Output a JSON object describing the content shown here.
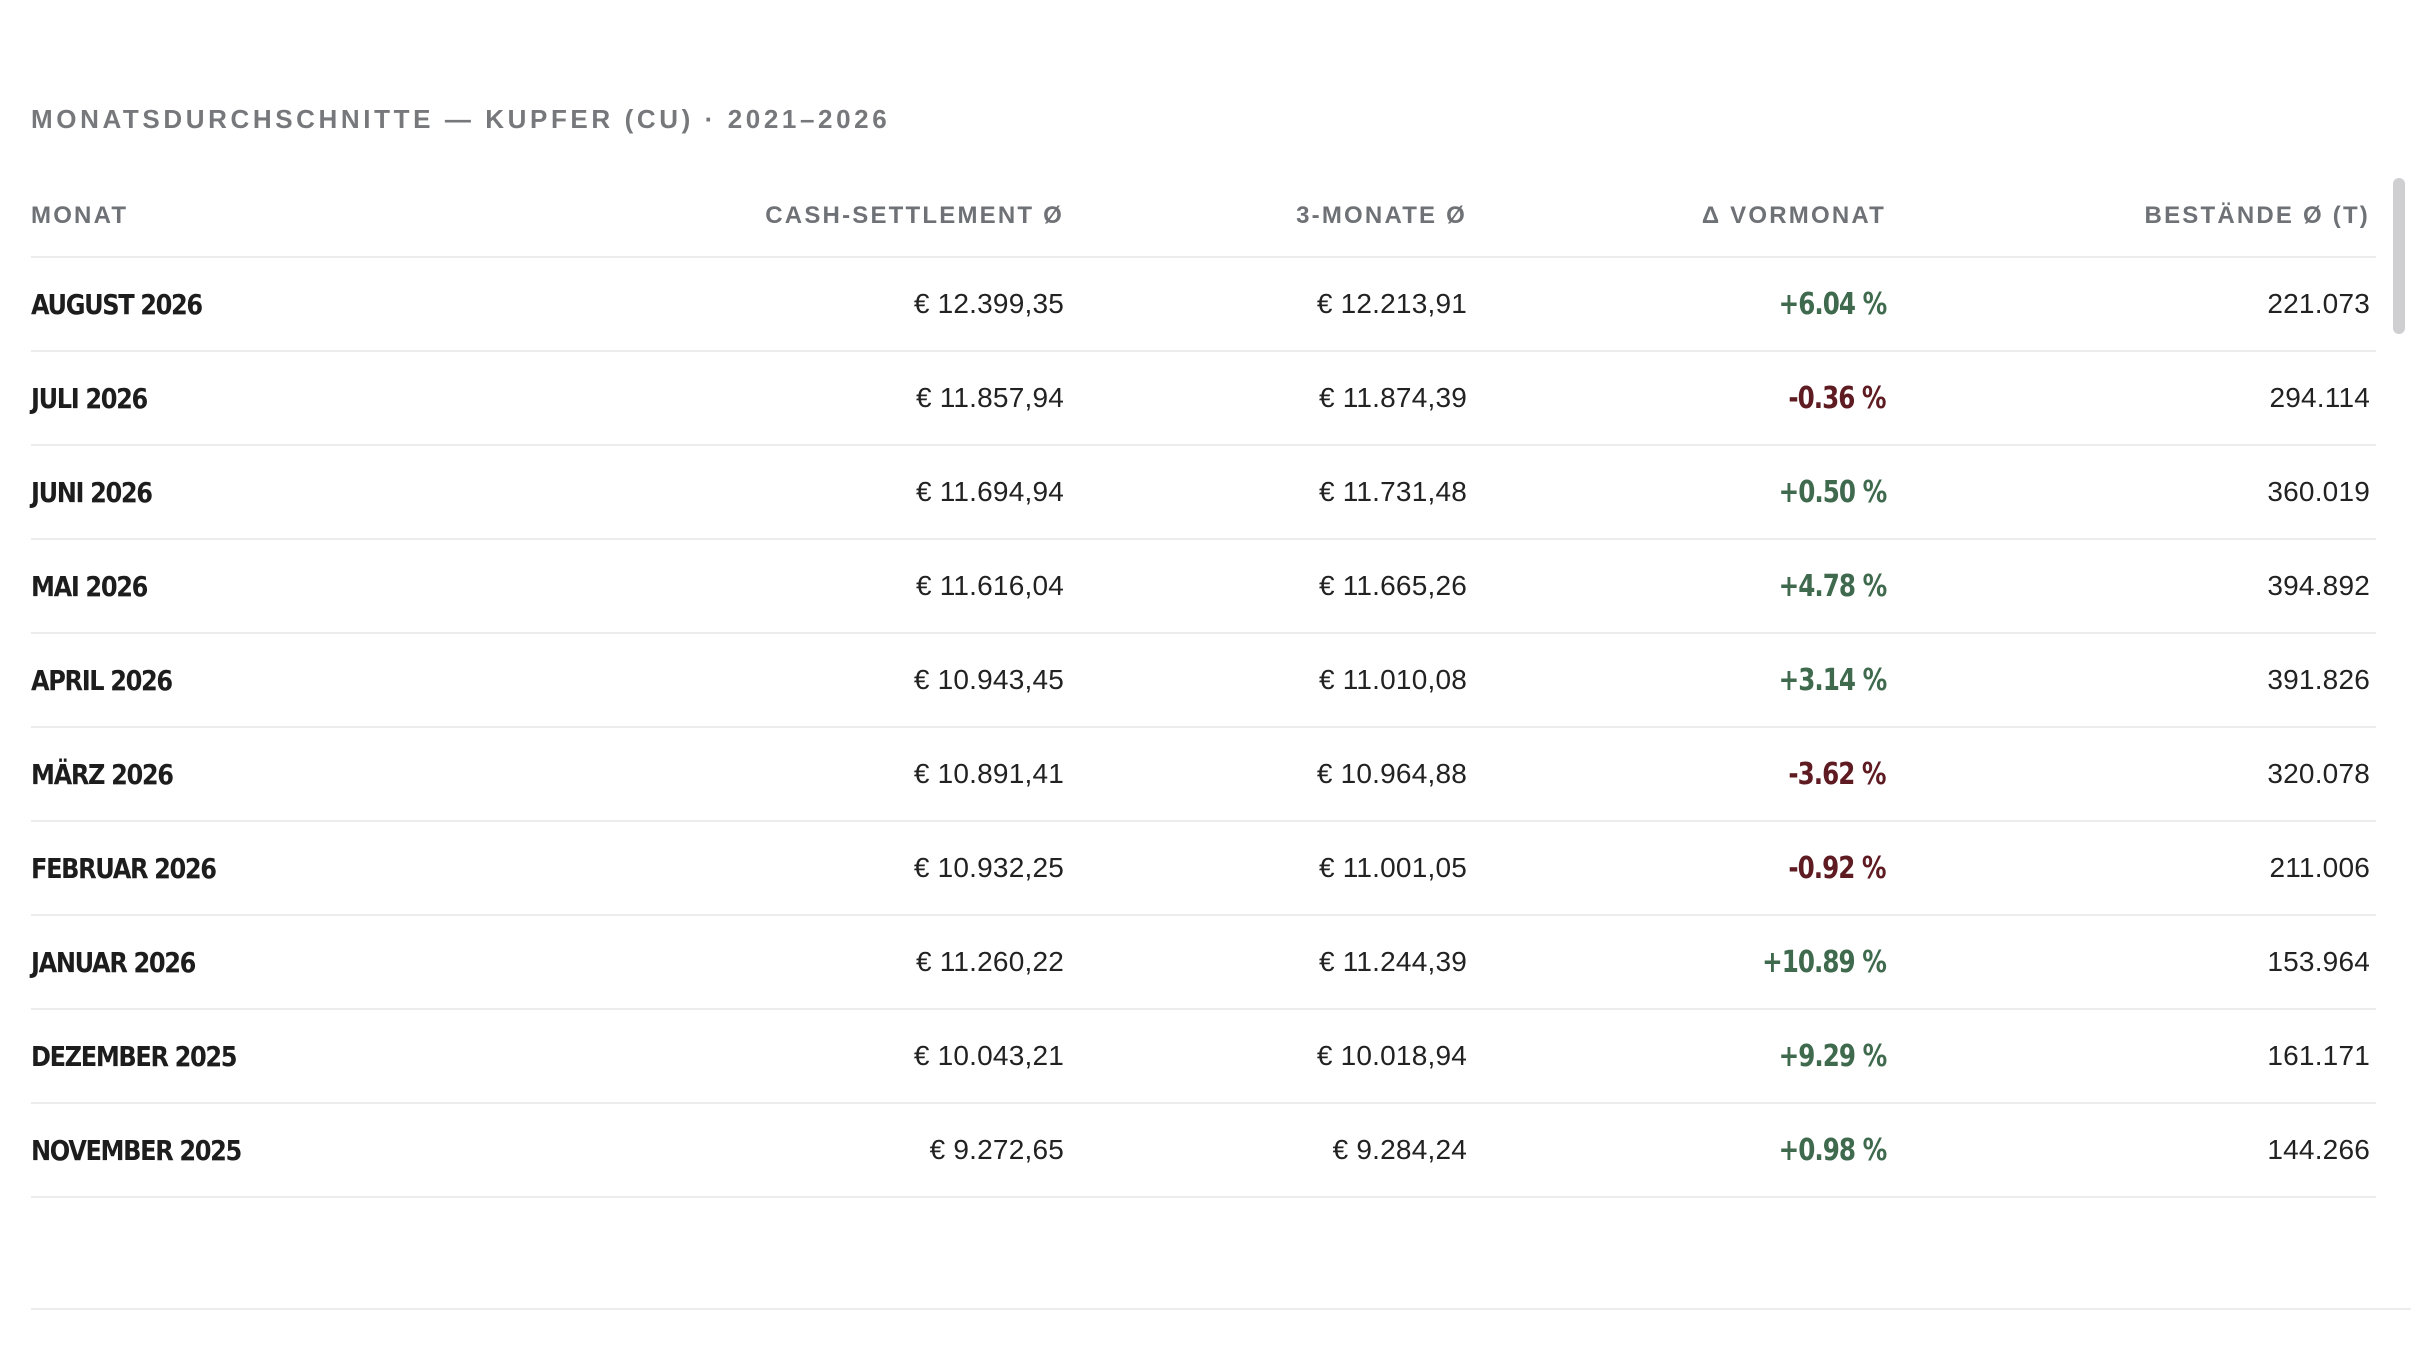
{
  "table": {
    "title": "MONATSDURCHSCHNITTE — KUPFER (CU) · 2021–2026",
    "columns": {
      "month": "MONAT",
      "cash": "CASH-SETTLEMENT Ø",
      "three_month": "3-MONATE Ø",
      "delta": "Δ VORMONAT",
      "stock": "BESTÄNDE Ø (T)"
    },
    "rows": [
      {
        "month": "AUGUST 2026",
        "cash": "€ 12.399,35",
        "three_month": "€ 12.213,91",
        "delta": "+6.04 %",
        "trend": "up",
        "stock": "221.073"
      },
      {
        "month": "JULI 2026",
        "cash": "€ 11.857,94",
        "three_month": "€ 11.874,39",
        "delta": "-0.36 %",
        "trend": "down",
        "stock": "294.114"
      },
      {
        "month": "JUNI 2026",
        "cash": "€ 11.694,94",
        "three_month": "€ 11.731,48",
        "delta": "+0.50 %",
        "trend": "up",
        "stock": "360.019"
      },
      {
        "month": "MAI 2026",
        "cash": "€ 11.616,04",
        "three_month": "€ 11.665,26",
        "delta": "+4.78 %",
        "trend": "up",
        "stock": "394.892"
      },
      {
        "month": "APRIL 2026",
        "cash": "€ 10.943,45",
        "three_month": "€ 11.010,08",
        "delta": "+3.14 %",
        "trend": "up",
        "stock": "391.826"
      },
      {
        "month": "MÄRZ 2026",
        "cash": "€ 10.891,41",
        "three_month": "€ 10.964,88",
        "delta": "-3.62 %",
        "trend": "down",
        "stock": "320.078"
      },
      {
        "month": "FEBRUAR 2026",
        "cash": "€ 10.932,25",
        "three_month": "€ 11.001,05",
        "delta": "-0.92 %",
        "trend": "down",
        "stock": "211.006"
      },
      {
        "month": "JANUAR 2026",
        "cash": "€ 11.260,22",
        "three_month": "€ 11.244,39",
        "delta": "+10.89 %",
        "trend": "up",
        "stock": "153.964"
      },
      {
        "month": "DEZEMBER 2025",
        "cash": "€ 10.043,21",
        "three_month": "€ 10.018,94",
        "delta": "+9.29 %",
        "trend": "up",
        "stock": "161.171"
      },
      {
        "month": "NOVEMBER 2025",
        "cash": "€ 9.272,65",
        "three_month": "€ 9.284,24",
        "delta": "+0.98 %",
        "trend": "up",
        "stock": "144.266"
      }
    ]
  },
  "colors": {
    "positive": "#3f6a4e",
    "negative": "#5e1b22",
    "header_text": "#6e7175",
    "divider": "#ececec"
  }
}
